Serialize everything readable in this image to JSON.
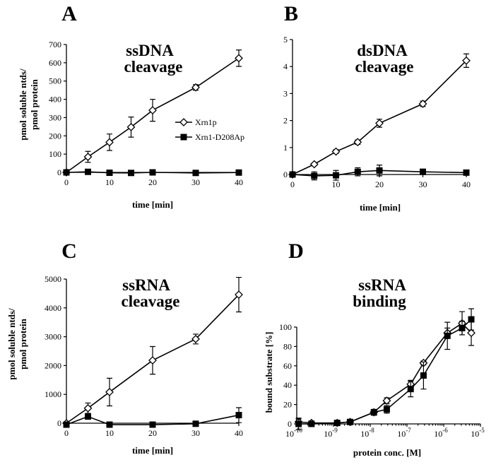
{
  "colors": {
    "ink": "#000000",
    "background": "#ffffff"
  },
  "chart_data": [
    {
      "type": "line",
      "panel": "A",
      "title_lines": [
        "ssDNA",
        "cleavage"
      ],
      "xlabel": "time [min]",
      "ylabel_lines": [
        "pmol soluble ntds/",
        "pmol protein"
      ],
      "xscale": "linear",
      "xlim": [
        0,
        40
      ],
      "ylim": [
        0,
        700
      ],
      "xticks": [
        0,
        10,
        20,
        30,
        40
      ],
      "xtick_labels": [
        "0",
        "10",
        "20",
        "30",
        "40"
      ],
      "yticks": [
        0,
        100,
        200,
        300,
        400,
        500,
        600,
        700
      ],
      "ytick_labels": [
        "0",
        "100",
        "200",
        "300",
        "400",
        "500",
        "600",
        "700"
      ],
      "legend": {
        "placement": "center-right",
        "entries": [
          {
            "label": "Xrn1p",
            "marker": "diamond-open"
          },
          {
            "label": "Xrn1-D208Ap",
            "marker": "square-filled"
          }
        ]
      },
      "series": [
        {
          "name": "Xrn1p",
          "marker": "diamond-open",
          "x": [
            0,
            5,
            10,
            15,
            20,
            30,
            40
          ],
          "y": [
            0,
            85,
            165,
            248,
            340,
            465,
            625
          ],
          "err": [
            0,
            30,
            45,
            55,
            60,
            15,
            45
          ]
        },
        {
          "name": "Xrn1-D208Ap",
          "marker": "square-filled",
          "x": [
            0,
            5,
            10,
            15,
            20,
            30,
            40
          ],
          "y": [
            0,
            3,
            -2,
            -3,
            0,
            -3,
            -1
          ],
          "err": [
            0,
            0,
            0,
            0,
            0,
            0,
            0
          ]
        }
      ]
    },
    {
      "type": "line",
      "panel": "B",
      "title_lines": [
        "dsDNA",
        "cleavage"
      ],
      "xlabel": "time [min]",
      "ylabel_lines": [],
      "xscale": "linear",
      "xlim": [
        0,
        40
      ],
      "ylim": [
        0,
        5
      ],
      "xticks": [
        0,
        10,
        20,
        30,
        40
      ],
      "xtick_labels": [
        "0",
        "10",
        "20",
        "30",
        "40"
      ],
      "yticks": [
        0,
        1,
        2,
        3,
        4,
        5
      ],
      "ytick_labels": [
        "0",
        "1",
        "2",
        "3",
        "4",
        "5"
      ],
      "series": [
        {
          "name": "Xrn1p",
          "marker": "diamond-open",
          "x": [
            0,
            5,
            10,
            15,
            20,
            30,
            40
          ],
          "y": [
            0,
            0.38,
            0.85,
            1.2,
            1.9,
            2.62,
            4.22
          ],
          "err": [
            0,
            0.05,
            0.07,
            0.08,
            0.15,
            0.1,
            0.25
          ]
        },
        {
          "name": "Xrn1-D208Ap",
          "marker": "square-filled",
          "x": [
            0,
            5,
            10,
            15,
            20,
            30,
            40
          ],
          "y": [
            0,
            -0.05,
            -0.03,
            0.1,
            0.15,
            0.1,
            0.07
          ],
          "err": [
            0.1,
            0.15,
            0.18,
            0.15,
            0.2,
            0.1,
            0.08
          ]
        }
      ]
    },
    {
      "type": "line",
      "panel": "C",
      "title_lines": [
        "ssRNA",
        "cleavage"
      ],
      "xlabel": "time [min]",
      "ylabel_lines": [
        "pmol soluble ntds/",
        "pmol protein"
      ],
      "xscale": "linear",
      "xlim": [
        0,
        40
      ],
      "ylim": [
        0,
        5000
      ],
      "xticks": [
        0,
        10,
        20,
        30,
        40
      ],
      "xtick_labels": [
        "0",
        "10",
        "20",
        "30",
        "40"
      ],
      "yticks": [
        0,
        1000,
        2000,
        3000,
        4000,
        5000
      ],
      "ytick_labels": [
        "0",
        "1000",
        "2000",
        "3000",
        "4000",
        "5000"
      ],
      "series": [
        {
          "name": "Xrn1p",
          "marker": "diamond-open",
          "x": [
            0,
            5,
            10,
            20,
            30,
            40
          ],
          "y": [
            0,
            520,
            1080,
            2180,
            2920,
            4460
          ],
          "err": [
            0,
            180,
            480,
            480,
            170,
            600
          ]
        },
        {
          "name": "Xrn1-D208Ap",
          "marker": "square-filled",
          "x": [
            0,
            5,
            10,
            20,
            30,
            40
          ],
          "y": [
            -50,
            230,
            -50,
            -50,
            -20,
            280
          ],
          "err": [
            0,
            60,
            0,
            0,
            50,
            260
          ]
        }
      ]
    },
    {
      "type": "line",
      "panel": "D",
      "title_lines": [
        "ssRNA",
        "binding"
      ],
      "xlabel": "protein conc. [M]",
      "ylabel_lines": [
        "bound substrate [%]"
      ],
      "xscale": "log",
      "xlim": [
        -10,
        -5
      ],
      "ylim": [
        0,
        100
      ],
      "xticks": [
        -10,
        -9,
        -8,
        -7,
        -6,
        -5
      ],
      "xtick_labels": [
        "10",
        "10",
        "10",
        "10",
        "10",
        "10"
      ],
      "xtick_exponents": [
        "-10",
        "-9",
        "-8",
        "-7",
        "-6",
        "-5"
      ],
      "yticks": [
        0,
        20,
        40,
        60,
        80,
        100
      ],
      "ytick_labels": [
        "0",
        "20",
        "40",
        "60",
        "80",
        "100"
      ],
      "series": [
        {
          "name": "Xrn1p",
          "marker": "diamond-open",
          "x": [
            -9.95,
            -9.6,
            -8.9,
            -8.55,
            -7.9,
            -7.55,
            -6.9,
            -6.55,
            -5.9,
            -5.5,
            -5.25
          ],
          "y": [
            2,
            1,
            1,
            2,
            12,
            24,
            41,
            63,
            94,
            104,
            94
          ],
          "err": [
            3,
            2,
            1,
            2,
            3,
            3,
            4,
            2,
            5,
            12,
            13
          ]
        },
        {
          "name": "Xrn1-D208Ap",
          "marker": "square-filled",
          "x": [
            -9.95,
            -9.6,
            -8.9,
            -8.55,
            -7.9,
            -7.55,
            -6.9,
            -6.55,
            -5.9,
            -5.5,
            -5.25
          ],
          "y": [
            0,
            0,
            1,
            2,
            12,
            15,
            36,
            50,
            91,
            99,
            108
          ],
          "err": [
            6,
            1,
            1,
            2,
            3,
            4,
            8,
            14,
            14,
            7,
            11
          ]
        }
      ]
    }
  ]
}
